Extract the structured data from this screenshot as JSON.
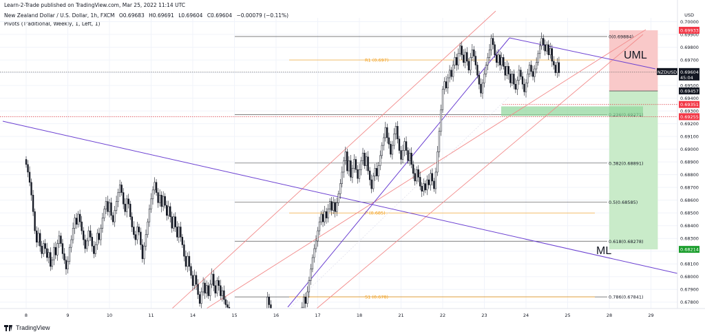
{
  "header": {
    "publisher": "Learn-2-Trade published on TradingView.com, Mar 25, 2022 11:14 UTC",
    "symbol_title": "New Zealand Dollar / U.S. Dollar, 1h, FXCM",
    "open": "O0.69683",
    "high": "H0.69691",
    "low": "L0.69604",
    "close": "C0.69604",
    "change": "−0.00079 (−0.11%)",
    "indicator": "Pivots (Traditional, Weekly, 1, Left, 1)"
  },
  "footer": {
    "brand": "TradingView"
  },
  "colors": {
    "up": "#131722",
    "down": "#131722",
    "fib": "#555555",
    "pivot": "#f39c12",
    "fork": "#6a3fd1",
    "channel": "#f28a8a",
    "stop_zone": "#f9c9c9",
    "target_zone": "#c9ebc9",
    "red_tag": "#f23645",
    "green_tag": "#1b9e2d",
    "dark_tag": "#131722"
  },
  "chart_data": {
    "type": "candlestick",
    "title": "New Zealand Dollar / U.S. Dollar, 1h, FXCM",
    "currency_label": "USD",
    "ylim": [
      0.6775,
      0.7003
    ],
    "y_ticks": [
      "0.70000",
      "0.69900",
      "0.69800",
      "0.69700",
      "0.69600",
      "0.69500",
      "0.69400",
      "0.69300",
      "0.69200",
      "0.69100",
      "0.69000",
      "0.68900",
      "0.68800",
      "0.68700",
      "0.68600",
      "0.68500",
      "0.68400",
      "0.68300",
      "0.68200",
      "0.68100",
      "0.68000",
      "0.67900",
      "0.67800"
    ],
    "x_ticks": [
      "8",
      "9",
      "10",
      "11",
      "14",
      "15",
      "16",
      "17",
      "18",
      "21",
      "22",
      "23",
      "24",
      "25",
      "28",
      "29"
    ],
    "x_tick_index": [
      0,
      24,
      48,
      72,
      96,
      120,
      144,
      168,
      192,
      216,
      240,
      264,
      288,
      312,
      336,
      360
    ],
    "grid": true,
    "fib_levels": [
      {
        "label": "0(0.69884)",
        "price": 0.69884
      },
      {
        "label": "0.236(0.69271)",
        "price": 0.69271
      },
      {
        "label": "0.382(0.68891)",
        "price": 0.68891
      },
      {
        "label": "0.5(0.68585)",
        "price": 0.68585
      },
      {
        "label": "0.618(0.68278)",
        "price": 0.68278
      },
      {
        "label": "0.786(0.67841)",
        "price": 0.67841
      }
    ],
    "pivots": [
      {
        "label": "R1 (0.697)",
        "price": 0.697
      },
      {
        "label": "P (0.685)",
        "price": 0.685
      },
      {
        "label": "S1 (0.678)",
        "price": 0.67841
      }
    ],
    "annotations": [
      {
        "text": "UML",
        "bar": 352,
        "price": 0.6972
      },
      {
        "text": "ML",
        "bar": 336,
        "price": 0.6821
      }
    ],
    "price_tags": [
      {
        "text": "0.69933",
        "price": 0.69933,
        "color": "red"
      },
      {
        "text": "NZDUSD",
        "text2": "0.69604",
        "sub": "45:04",
        "price": 0.69604,
        "color": "dark"
      },
      {
        "text": "0.69457",
        "price": 0.69457,
        "color": "dark"
      },
      {
        "text": "0.69351",
        "price": 0.69351,
        "color": "red"
      },
      {
        "text": "0.69255",
        "price": 0.69255,
        "color": "red"
      },
      {
        "text": "0.68214",
        "price": 0.68214,
        "color": "green"
      }
    ],
    "position": {
      "entry": 0.69457,
      "stop": 0.69933,
      "target": 0.68214,
      "start_bar": 330,
      "end_bar": 356
    },
    "candles_close": [
      0.6888,
      0.6882,
      0.6874,
      0.6864,
      0.6851,
      0.6836,
      0.6827,
      0.6834,
      0.6824,
      0.6818,
      0.6826,
      0.6822,
      0.6815,
      0.6819,
      0.6808,
      0.6813,
      0.6823,
      0.6817,
      0.6826,
      0.6832,
      0.6826,
      0.6818,
      0.6813,
      0.6806,
      0.6812,
      0.6823,
      0.6829,
      0.6838,
      0.6846,
      0.6841,
      0.6849,
      0.6843,
      0.6836,
      0.6829,
      0.6822,
      0.6828,
      0.6836,
      0.6831,
      0.6824,
      0.6818,
      0.6825,
      0.6834,
      0.6829,
      0.6838,
      0.6846,
      0.6853,
      0.6859,
      0.6851,
      0.6858,
      0.6848,
      0.6843,
      0.6852,
      0.6859,
      0.6866,
      0.6872,
      0.6866,
      0.6857,
      0.6851,
      0.6861,
      0.6857,
      0.6847,
      0.6839,
      0.6833,
      0.6829,
      0.6839,
      0.6835,
      0.6825,
      0.6814,
      0.6824,
      0.6833,
      0.6843,
      0.6853,
      0.6861,
      0.6868,
      0.6874,
      0.6866,
      0.6858,
      0.6864,
      0.6855,
      0.6863,
      0.6856,
      0.6848,
      0.6855,
      0.6847,
      0.6838,
      0.6847,
      0.6839,
      0.6831,
      0.6839,
      0.6831,
      0.6825,
      0.6816,
      0.6808,
      0.6816,
      0.6808,
      0.6801,
      0.6793,
      0.6801,
      0.6794,
      0.6786,
      0.6779,
      0.6788,
      0.6795,
      0.6787,
      0.6793,
      0.6785,
      0.6794,
      0.6802,
      0.6793,
      0.6787,
      0.6797,
      0.6793,
      0.6785,
      0.6789,
      0.6782,
      0.6778,
      0.6776,
      0.6774,
      0.6774,
      0.6774,
      0.6774,
      0.6774,
      0.6774,
      0.6774,
      0.6774,
      0.6774,
      0.6774,
      0.6774,
      0.6774,
      0.6774,
      0.6774,
      0.6774,
      0.6774,
      0.6774,
      0.6774,
      0.6774,
      0.6774,
      0.6774,
      0.6774,
      0.6784,
      0.6778,
      0.6774,
      0.6774,
      0.6774,
      0.6774,
      0.6774,
      0.6774,
      0.6774,
      0.6774,
      0.6774,
      0.6774,
      0.6774,
      0.6774,
      0.6774,
      0.6774,
      0.6774,
      0.6774,
      0.6774,
      0.6774,
      0.6776,
      0.6784,
      0.6779,
      0.6788,
      0.6797,
      0.6806,
      0.6815,
      0.6822,
      0.6828,
      0.6836,
      0.6843,
      0.6849,
      0.6843,
      0.6851,
      0.6846,
      0.6853,
      0.6859,
      0.6852,
      0.6858,
      0.6851,
      0.6858,
      0.6865,
      0.6873,
      0.6882,
      0.6891,
      0.6898,
      0.6883,
      0.6891,
      0.6878,
      0.6885,
      0.6892,
      0.6884,
      0.6877,
      0.6884,
      0.6891,
      0.6897,
      0.6887,
      0.6894,
      0.6883,
      0.6876,
      0.6869,
      0.6879,
      0.6885,
      0.6879,
      0.6887,
      0.6895,
      0.6903,
      0.6909,
      0.6917,
      0.6909,
      0.6904,
      0.6896,
      0.6903,
      0.6912,
      0.6918,
      0.6908,
      0.6899,
      0.6892,
      0.6899,
      0.6906,
      0.6899,
      0.6891,
      0.6897,
      0.6888,
      0.6881,
      0.6875,
      0.6884,
      0.6878,
      0.6871,
      0.6867,
      0.6873,
      0.6868,
      0.6876,
      0.6872,
      0.6881,
      0.6875,
      0.6869,
      0.6882,
      0.6898,
      0.6914,
      0.6931,
      0.6947,
      0.6953,
      0.6948,
      0.6956,
      0.6962,
      0.6957,
      0.6966,
      0.6972,
      0.6966,
      0.6975,
      0.6981,
      0.6974,
      0.6968,
      0.6976,
      0.6969,
      0.6962,
      0.6972,
      0.6978,
      0.6973,
      0.6966,
      0.6958,
      0.6951,
      0.6944,
      0.6952,
      0.6959,
      0.6966,
      0.6972,
      0.6978,
      0.6987,
      0.6982,
      0.6974,
      0.6968,
      0.6974,
      0.6966,
      0.6972,
      0.6965,
      0.6958,
      0.6965,
      0.6959,
      0.6952,
      0.6959,
      0.6951,
      0.6947,
      0.6954,
      0.6962,
      0.6957,
      0.6951,
      0.6945,
      0.6952,
      0.6959,
      0.6966,
      0.6961,
      0.6957,
      0.6963,
      0.6968,
      0.6975,
      0.6981,
      0.6987,
      0.6982,
      0.6977,
      0.6982,
      0.6974,
      0.6979,
      0.6969,
      0.6966,
      0.696,
      0.6968,
      0.696
    ]
  }
}
